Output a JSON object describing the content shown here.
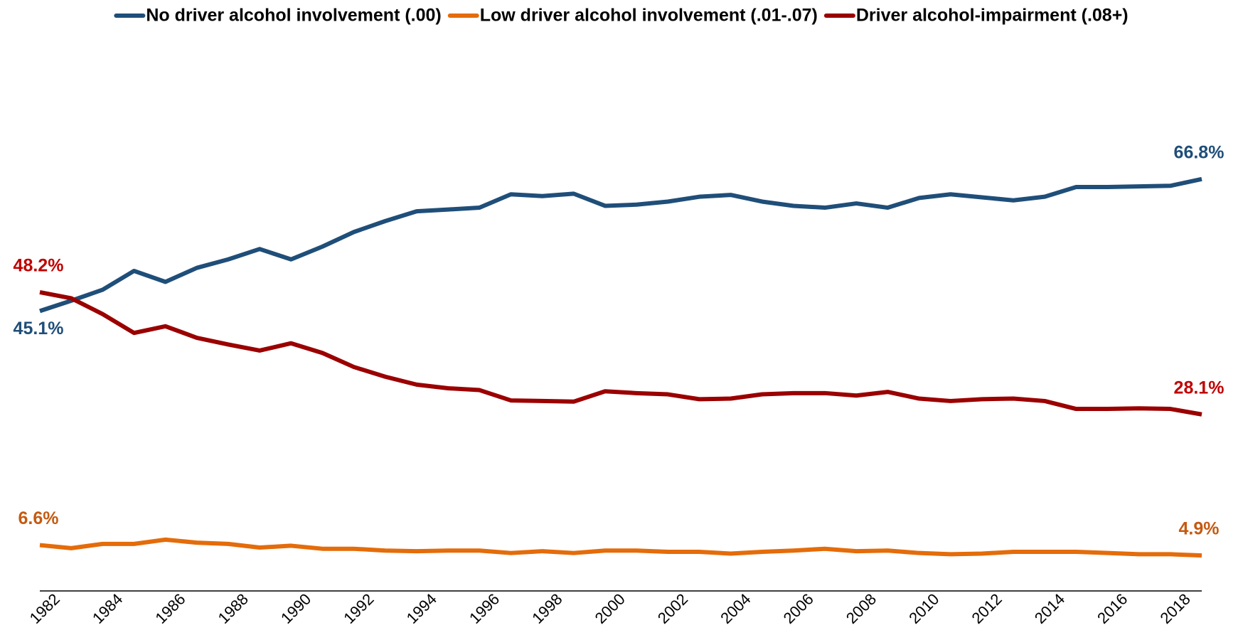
{
  "chart_data": {
    "type": "line",
    "x": [
      1982,
      1983,
      1984,
      1985,
      1986,
      1987,
      1988,
      1989,
      1990,
      1991,
      1992,
      1993,
      1994,
      1995,
      1996,
      1997,
      1998,
      1999,
      2000,
      2001,
      2002,
      2003,
      2004,
      2005,
      2006,
      2007,
      2008,
      2009,
      2010,
      2011,
      2012,
      2013,
      2014,
      2015,
      2016,
      2017,
      2018,
      2019
    ],
    "xlim": [
      1982,
      2019
    ],
    "xticks": [
      1982,
      1984,
      1986,
      1988,
      1990,
      1992,
      1994,
      1996,
      1998,
      2000,
      2002,
      2004,
      2006,
      2008,
      2010,
      2012,
      2014,
      2016,
      2018
    ],
    "ylim": [
      0,
      80
    ],
    "grid": false,
    "legend": "top",
    "series": [
      {
        "name": "No driver alcohol involvement (.00)",
        "color": "#1f4e79",
        "label_color": "#1f4e79",
        "values": [
          45.1,
          46.8,
          48.6,
          51.7,
          49.9,
          52.2,
          53.6,
          55.3,
          53.6,
          55.7,
          58.1,
          59.9,
          61.5,
          61.8,
          62.1,
          64.3,
          64.0,
          64.4,
          62.4,
          62.6,
          63.1,
          63.9,
          64.2,
          63.1,
          62.4,
          62.1,
          62.8,
          62.1,
          63.7,
          64.3,
          63.8,
          63.3,
          63.9,
          65.5,
          65.5,
          65.6,
          65.7,
          66.8
        ],
        "value_labels": [
          "45.1%",
          null,
          null,
          null,
          null,
          null,
          null,
          null,
          null,
          null,
          null,
          null,
          null,
          null,
          null,
          null,
          null,
          null,
          null,
          null,
          null,
          null,
          null,
          null,
          null,
          null,
          null,
          null,
          null,
          null,
          null,
          null,
          null,
          null,
          null,
          null,
          null,
          "66.8%"
        ]
      },
      {
        "name": "Low driver alcohol involvement (.01-.07)",
        "color": "#e46c0a",
        "label_color": "#c55a11",
        "values": [
          6.6,
          6.1,
          6.8,
          6.8,
          7.5,
          7.0,
          6.8,
          6.2,
          6.5,
          6.0,
          6.0,
          5.7,
          5.6,
          5.7,
          5.7,
          5.3,
          5.6,
          5.3,
          5.7,
          5.7,
          5.5,
          5.5,
          5.2,
          5.5,
          5.7,
          6.0,
          5.6,
          5.7,
          5.3,
          5.1,
          5.2,
          5.5,
          5.5,
          5.5,
          5.3,
          5.1,
          5.1,
          4.9
        ],
        "value_labels": [
          "6.6%",
          null,
          null,
          null,
          null,
          null,
          null,
          null,
          null,
          null,
          null,
          null,
          null,
          null,
          null,
          null,
          null,
          null,
          null,
          null,
          null,
          null,
          null,
          null,
          null,
          null,
          null,
          null,
          null,
          null,
          null,
          null,
          null,
          null,
          null,
          null,
          null,
          "4.9%"
        ]
      },
      {
        "name": "Driver alcohol-impairment (.08+)",
        "color": "#9b0000",
        "label_color": "#c00000",
        "values": [
          48.2,
          47.2,
          44.6,
          41.5,
          42.6,
          40.7,
          39.6,
          38.6,
          39.8,
          38.2,
          35.9,
          34.3,
          33.0,
          32.4,
          32.1,
          30.4,
          30.3,
          30.2,
          31.9,
          31.6,
          31.4,
          30.6,
          30.7,
          31.4,
          31.6,
          31.6,
          31.2,
          31.8,
          30.7,
          30.3,
          30.6,
          30.7,
          30.3,
          29.0,
          29.0,
          29.1,
          29.0,
          28.1
        ],
        "value_labels": [
          "48.2%",
          null,
          null,
          null,
          null,
          null,
          null,
          null,
          null,
          null,
          null,
          null,
          null,
          null,
          null,
          null,
          null,
          null,
          null,
          null,
          null,
          null,
          null,
          null,
          null,
          null,
          null,
          null,
          null,
          null,
          null,
          null,
          null,
          null,
          null,
          null,
          null,
          "28.1%"
        ]
      }
    ]
  }
}
